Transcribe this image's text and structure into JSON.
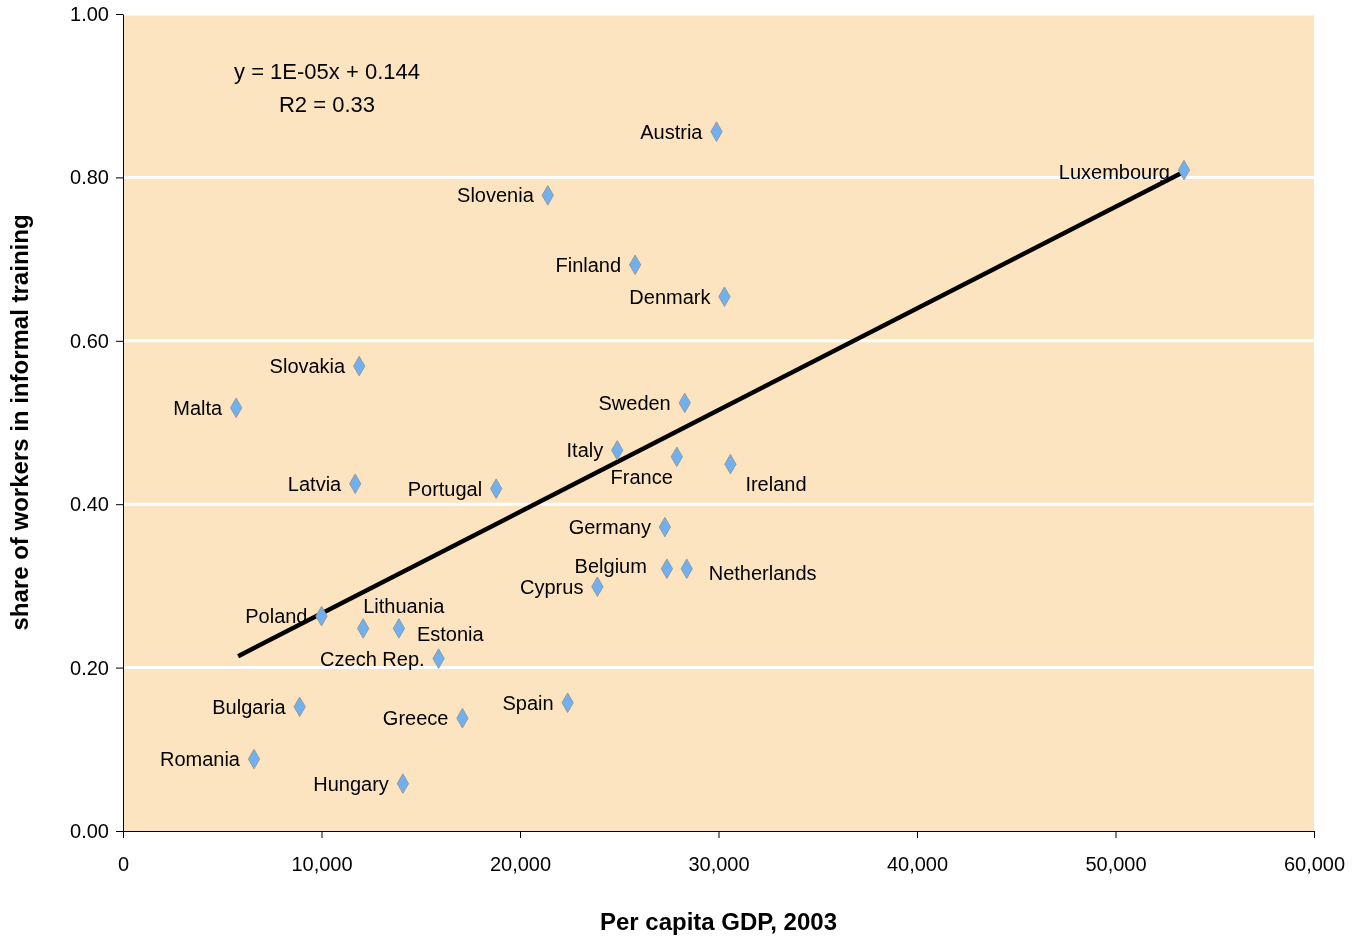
{
  "chart_data": {
    "type": "scatter",
    "xlabel": "Per capita GDP, 2003",
    "ylabel": "share of workers in informal training",
    "xlim": [
      0,
      60000
    ],
    "ylim": [
      0,
      1
    ],
    "xticks": [
      0,
      {
        "value": 10000,
        "label": "10,000"
      },
      {
        "value": 20000,
        "label": "20,000"
      },
      {
        "value": 30000,
        "label": "30,000"
      },
      {
        "value": 40000,
        "label": "40,000"
      },
      {
        "value": 50000,
        "label": "50,000"
      },
      {
        "value": 60000,
        "label": "60,000"
      }
    ],
    "yticks": [
      {
        "value": 0,
        "label": "0.00"
      },
      {
        "value": 0.2,
        "label": "0.20"
      },
      {
        "value": 0.4,
        "label": "0.40"
      },
      {
        "value": 0.6,
        "label": "0.60"
      },
      {
        "value": 0.8,
        "label": "0.80"
      },
      {
        "value": 1,
        "label": "1.00"
      }
    ],
    "grid": "y",
    "series": [
      {
        "color": "#6fb1f0",
        "marker": "diamond",
        "x": [
          29900,
          53450,
          21400,
          25800,
          30300,
          11900,
          5700,
          28300,
          24900,
          27900,
          30600,
          11700,
          18800,
          27300,
          27400,
          28400,
          23900,
          10000,
          12100,
          13900,
          15900,
          22400,
          8900,
          17100,
          6600,
          14100
        ],
        "values": [
          0.856,
          0.809,
          0.778,
          0.693,
          0.654,
          0.569,
          0.518,
          0.524,
          0.466,
          0.458,
          0.449,
          0.425,
          0.419,
          0.372,
          0.321,
          0.321,
          0.299,
          0.263,
          0.248,
          0.248,
          0.211,
          0.157,
          0.152,
          0.138,
          0.088,
          0.058
        ]
      },
      {
        "type": "line",
        "color": "#000000",
        "x": [
          5800,
          53450
        ],
        "values": [
          0.214,
          0.807
        ]
      }
    ],
    "annotations": [
      {
        "text": "Austria",
        "x": 29900,
        "y": 0.856
      },
      {
        "text": "Luxembourg",
        "x": 53450,
        "y": 0.809
      },
      {
        "text": "Slovenia",
        "x": 21400,
        "y": 0.778
      },
      {
        "text": "Finland",
        "x": 25800,
        "y": 0.693
      },
      {
        "text": "Denmark",
        "x": 30300,
        "y": 0.654
      },
      {
        "text": "Slovakia",
        "x": 11900,
        "y": 0.569
      },
      {
        "text": "Malta",
        "x": 5700,
        "y": 0.518
      },
      {
        "text": "Sweden",
        "x": 28300,
        "y": 0.524
      },
      {
        "text": "Italy",
        "x": 24900,
        "y": 0.466
      },
      {
        "text": "France",
        "x": 27900,
        "y": 0.458
      },
      {
        "text": "Ireland",
        "x": 30600,
        "y": 0.449
      },
      {
        "text": "Latvia",
        "x": 11700,
        "y": 0.425
      },
      {
        "text": "Portugal",
        "x": 18800,
        "y": 0.419
      },
      {
        "text": "Germany",
        "x": 27300,
        "y": 0.372
      },
      {
        "text": "Belgium",
        "x": 27400,
        "y": 0.321
      },
      {
        "text": "Netherlands",
        "x": 28400,
        "y": 0.321
      },
      {
        "text": "Cyprus",
        "x": 23900,
        "y": 0.299
      },
      {
        "text": "Poland",
        "x": 10000,
        "y": 0.263
      },
      {
        "text": "Lithuania",
        "x": 12100,
        "y": 0.248
      },
      {
        "text": "Estonia",
        "x": 13900,
        "y": 0.248
      },
      {
        "text": "Czech Rep.",
        "x": 15900,
        "y": 0.211
      },
      {
        "text": "Spain",
        "x": 22400,
        "y": 0.157
      },
      {
        "text": "Bulgaria",
        "x": 8900,
        "y": 0.152
      },
      {
        "text": "Greece",
        "x": 17100,
        "y": 0.138
      },
      {
        "text": "Romania",
        "x": 6600,
        "y": 0.088
      },
      {
        "text": "Hungary",
        "x": 14100,
        "y": 0.058
      },
      "y = 1E-05x + 0.144",
      "R2 = 0.33"
    ]
  }
}
